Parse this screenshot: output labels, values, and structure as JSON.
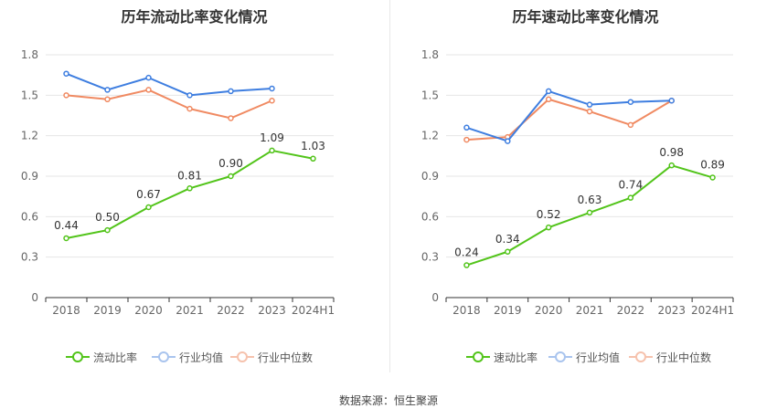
{
  "source_label": "数据来源：恒生聚源",
  "legend_labels": [
    "行业均值",
    "行业中位数"
  ],
  "chart_data": [
    {
      "type": "line",
      "title": "历年流动比率变化情况",
      "categories": [
        "2018",
        "2019",
        "2020",
        "2021",
        "2022",
        "2023",
        "2024H1"
      ],
      "yticks": [
        "0",
        "0.3",
        "0.6",
        "0.9",
        "1.2",
        "1.5",
        "1.8"
      ],
      "ylim": [
        0,
        1.8
      ],
      "grid": true,
      "legend_position": "bottom",
      "series": [
        {
          "name": "流动比率",
          "color": "#52c41a",
          "values": [
            0.44,
            0.5,
            0.67,
            0.81,
            0.9,
            1.09,
            1.03
          ],
          "labels": [
            "0.44",
            "0.50",
            "0.67",
            "0.81",
            "0.90",
            "1.09",
            "1.03"
          ]
        },
        {
          "name": "行业均值",
          "color": "#3e7ee0",
          "values": [
            1.66,
            1.54,
            1.63,
            1.5,
            1.53,
            1.55,
            null
          ]
        },
        {
          "name": "行业中位数",
          "color": "#f08a62",
          "values": [
            1.5,
            1.47,
            1.54,
            1.4,
            1.33,
            1.46,
            null
          ]
        }
      ]
    },
    {
      "type": "line",
      "title": "历年速动比率变化情况",
      "categories": [
        "2018",
        "2019",
        "2020",
        "2021",
        "2022",
        "2023",
        "2024H1"
      ],
      "yticks": [
        "0",
        "0.3",
        "0.6",
        "0.9",
        "1.2",
        "1.5",
        "1.8"
      ],
      "ylim": [
        0,
        1.8
      ],
      "grid": true,
      "legend_position": "bottom",
      "series": [
        {
          "name": "速动比率",
          "color": "#52c41a",
          "values": [
            0.24,
            0.34,
            0.52,
            0.63,
            0.74,
            0.98,
            0.89
          ],
          "labels": [
            "0.24",
            "0.34",
            "0.52",
            "0.63",
            "0.74",
            "0.98",
            "0.89"
          ]
        },
        {
          "name": "行业均值",
          "color": "#3e7ee0",
          "values": [
            1.26,
            1.16,
            1.53,
            1.43,
            1.45,
            1.46,
            null
          ]
        },
        {
          "name": "行业中位数",
          "color": "#f08a62",
          "values": [
            1.17,
            1.19,
            1.47,
            1.38,
            1.28,
            1.46,
            null
          ]
        }
      ]
    }
  ]
}
